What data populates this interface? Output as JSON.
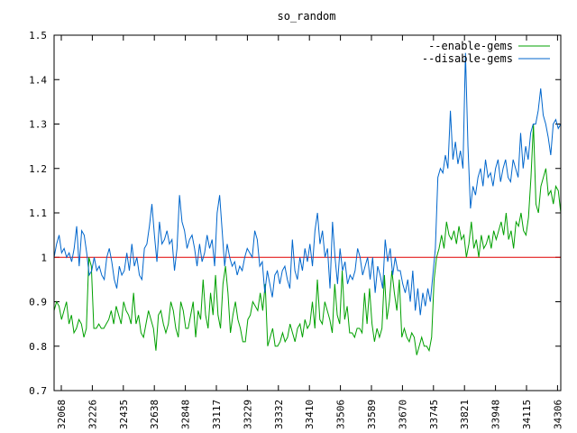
{
  "chart_data": {
    "type": "line",
    "title": "so_random",
    "xlabel": "",
    "ylabel": "",
    "ylim": [
      0.7,
      1.5
    ],
    "yticks": [
      "0.7",
      "0.8",
      "0.9",
      "1",
      "1.1",
      "1.2",
      "1.3",
      "1.4",
      "1.5"
    ],
    "ytick_values": [
      0.7,
      0.8,
      0.9,
      1.0,
      1.1,
      1.2,
      1.3,
      1.4,
      1.5
    ],
    "xticks": [
      "32068",
      "32226",
      "32435",
      "32638",
      "32848",
      "33117",
      "33229",
      "33332",
      "33410",
      "33506",
      "33589",
      "33670",
      "33745",
      "33821",
      "33948",
      "34115",
      "34306"
    ],
    "legend_position": "top-right",
    "baseline": 1.0,
    "colors": {
      "enable": "#00a000",
      "disable": "#0066cc",
      "baseline": "#e00000"
    },
    "series": [
      {
        "name": "--enable-gems",
        "values": [
          0.88,
          0.9,
          0.89,
          0.86,
          0.88,
          0.9,
          0.85,
          0.87,
          0.83,
          0.84,
          0.86,
          0.85,
          0.82,
          0.84,
          1.0,
          0.98,
          0.84,
          0.84,
          0.85,
          0.84,
          0.84,
          0.85,
          0.86,
          0.88,
          0.85,
          0.89,
          0.87,
          0.85,
          0.9,
          0.88,
          0.87,
          0.85,
          0.92,
          0.85,
          0.87,
          0.83,
          0.82,
          0.85,
          0.88,
          0.86,
          0.84,
          0.79,
          0.87,
          0.88,
          0.85,
          0.83,
          0.85,
          0.9,
          0.88,
          0.84,
          0.82,
          0.9,
          0.88,
          0.84,
          0.84,
          0.87,
          0.9,
          0.82,
          0.88,
          0.86,
          0.95,
          0.87,
          0.84,
          0.92,
          0.87,
          0.96,
          0.87,
          0.84,
          0.94,
          0.98,
          0.92,
          0.83,
          0.87,
          0.9,
          0.86,
          0.84,
          0.81,
          0.81,
          0.86,
          0.87,
          0.9,
          0.89,
          0.88,
          0.92,
          0.88,
          0.94,
          0.8,
          0.82,
          0.84,
          0.8,
          0.8,
          0.81,
          0.83,
          0.81,
          0.82,
          0.85,
          0.83,
          0.81,
          0.84,
          0.85,
          0.82,
          0.86,
          0.84,
          0.85,
          0.9,
          0.84,
          0.95,
          0.86,
          0.85,
          0.9,
          0.88,
          0.86,
          0.83,
          0.94,
          0.87,
          0.85,
          0.97,
          0.86,
          0.89,
          0.83,
          0.83,
          0.82,
          0.84,
          0.84,
          0.83,
          0.92,
          0.85,
          0.93,
          0.85,
          0.81,
          0.84,
          0.82,
          0.84,
          0.96,
          0.86,
          0.9,
          0.97,
          0.92,
          0.88,
          0.95,
          0.82,
          0.84,
          0.82,
          0.81,
          0.83,
          0.82,
          0.78,
          0.8,
          0.82,
          0.8,
          0.8,
          0.79,
          0.82,
          0.95,
          1.0,
          1.02,
          1.05,
          1.02,
          1.08,
          1.05,
          1.04,
          1.06,
          1.03,
          1.07,
          1.04,
          1.05,
          1.0,
          1.03,
          1.08,
          1.02,
          1.04,
          1.0,
          1.05,
          1.02,
          1.03,
          1.05,
          1.02,
          1.06,
          1.04,
          1.06,
          1.08,
          1.05,
          1.1,
          1.04,
          1.06,
          1.02,
          1.08,
          1.07,
          1.1,
          1.06,
          1.05,
          1.09,
          1.18,
          1.3,
          1.12,
          1.1,
          1.16,
          1.18,
          1.2,
          1.14,
          1.15,
          1.12,
          1.16,
          1.15,
          1.1
        ]
      },
      {
        "name": "--disable-gems",
        "values": [
          1.0,
          1.03,
          1.05,
          1.01,
          1.02,
          1.0,
          1.01,
          0.99,
          1.02,
          1.07,
          0.98,
          1.06,
          1.05,
          1.01,
          0.96,
          0.97,
          1.0,
          0.97,
          0.98,
          0.96,
          0.95,
          1.0,
          1.02,
          0.99,
          0.95,
          0.93,
          0.98,
          0.96,
          0.97,
          1.01,
          0.97,
          1.03,
          0.98,
          1.0,
          0.96,
          0.95,
          1.02,
          1.03,
          1.07,
          1.12,
          1.05,
          0.99,
          1.08,
          1.03,
          1.04,
          1.06,
          1.03,
          1.04,
          0.97,
          1.02,
          1.14,
          1.08,
          1.06,
          1.02,
          1.04,
          1.05,
          1.02,
          0.98,
          1.03,
          0.99,
          1.01,
          1.05,
          1.02,
          1.04,
          0.98,
          1.1,
          1.14,
          1.06,
          0.98,
          1.03,
          1.0,
          0.98,
          0.99,
          0.96,
          0.98,
          0.97,
          1.0,
          1.02,
          1.01,
          1.0,
          1.06,
          1.04,
          0.98,
          0.99,
          0.92,
          0.97,
          0.94,
          0.91,
          0.96,
          0.97,
          0.94,
          0.97,
          0.98,
          0.95,
          0.93,
          1.04,
          0.97,
          0.95,
          1.0,
          0.97,
          1.02,
          0.99,
          1.03,
          0.98,
          1.06,
          1.1,
          1.03,
          1.06,
          1.0,
          1.02,
          0.93,
          1.08,
          1.0,
          0.94,
          1.02,
          0.97,
          0.99,
          0.94,
          0.96,
          0.95,
          0.97,
          1.02,
          1.0,
          0.96,
          0.98,
          1.0,
          0.95,
          1.0,
          0.92,
          0.98,
          0.96,
          0.93,
          1.04,
          0.99,
          1.02,
          0.96,
          1.0,
          0.97,
          0.97,
          0.94,
          0.92,
          0.95,
          0.9,
          0.97,
          0.88,
          0.93,
          0.87,
          0.92,
          0.89,
          0.93,
          0.9,
          0.96,
          1.02,
          1.18,
          1.2,
          1.19,
          1.23,
          1.2,
          1.33,
          1.22,
          1.26,
          1.21,
          1.24,
          1.2,
          1.46,
          1.25,
          1.11,
          1.16,
          1.14,
          1.18,
          1.2,
          1.16,
          1.22,
          1.18,
          1.19,
          1.16,
          1.2,
          1.22,
          1.17,
          1.2,
          1.22,
          1.18,
          1.17,
          1.22,
          1.2,
          1.18,
          1.28,
          1.2,
          1.25,
          1.22,
          1.28,
          1.3,
          1.3,
          1.33,
          1.38,
          1.32,
          1.3,
          1.27,
          1.23,
          1.3,
          1.31,
          1.29,
          1.3
        ]
      }
    ]
  }
}
